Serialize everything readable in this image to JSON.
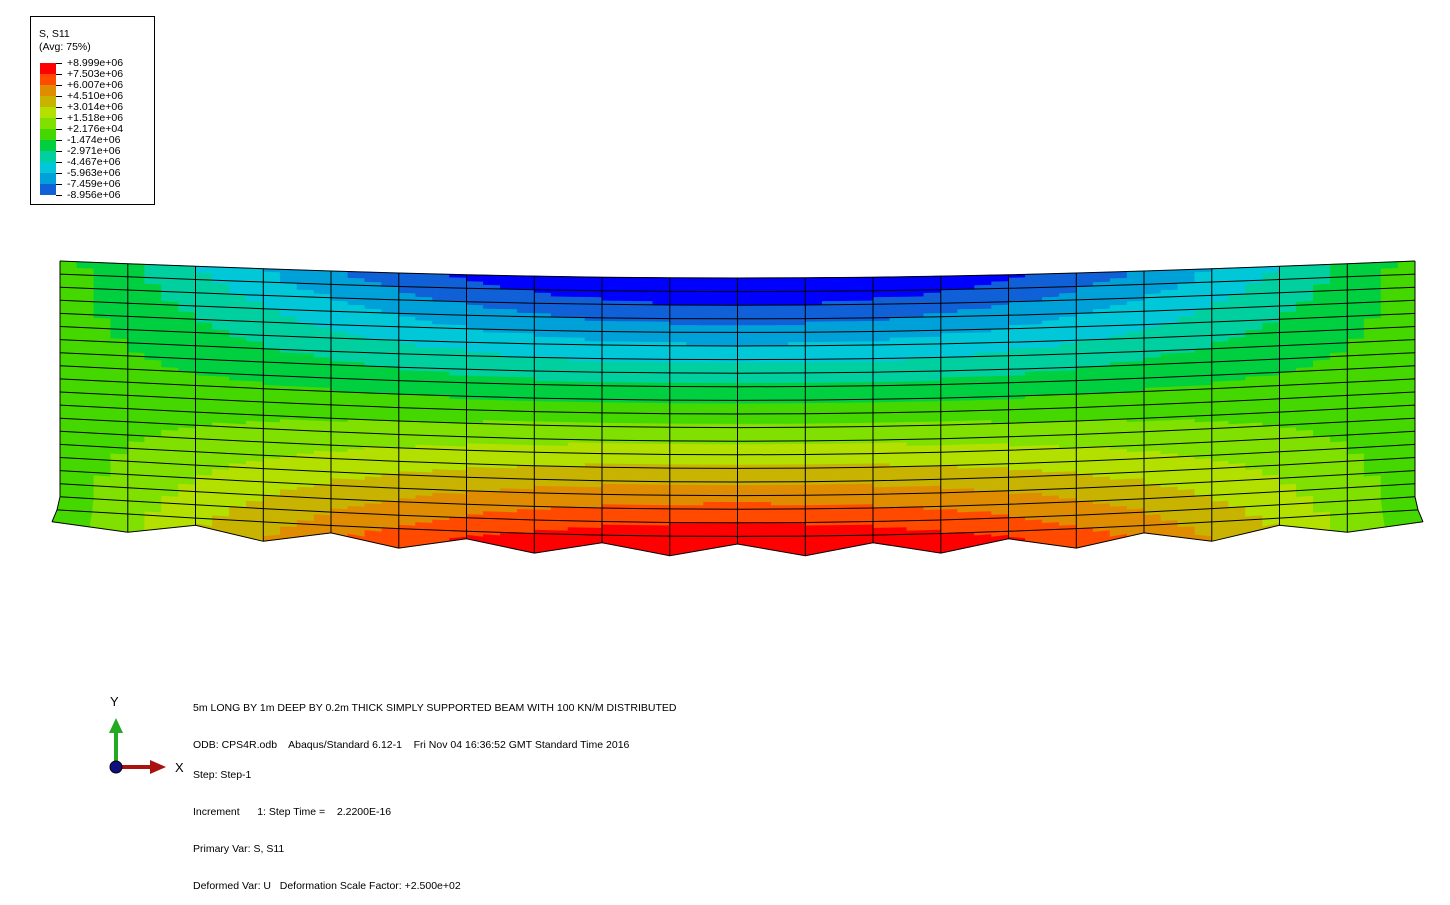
{
  "legend": {
    "title": "S, S11",
    "subtitle": "(Avg: 75%)",
    "levels": [
      "+8.999e+06",
      "+7.503e+06",
      "+6.007e+06",
      "+4.510e+06",
      "+3.014e+06",
      "+1.518e+06",
      "+2.176e+04",
      "-1.474e+06",
      "-2.971e+06",
      "-4.467e+06",
      "-5.963e+06",
      "-7.459e+06",
      "-8.956e+06"
    ],
    "colors": [
      "#ff0000",
      "#ff4a00",
      "#e08c00",
      "#c8b400",
      "#b4e000",
      "#80e000",
      "#44d800",
      "#00d040",
      "#00d0a0",
      "#00c8d8",
      "#00a0d8",
      "#1060d8",
      "#0000ff"
    ]
  },
  "contour": {
    "field": "S11",
    "min": -8956000.0,
    "max": 8999000.0
  },
  "info": {
    "title_line": "5m LONG BY 1m DEEP BY 0.2m THICK SIMPLY SUPPORTED BEAM WITH 100 KN/M DISTRIBUTED",
    "odb_line": "ODB: CPS4R.odb    Abaqus/Standard 6.12-1    Fri Nov 04 16:36:52 GMT Standard Time 2016",
    "step_line": "Step: Step-1",
    "increment_line": "Increment      1: Step Time =    2.2200E-16",
    "primary_line": "Primary Var: S, S11",
    "deformed_line": "Deformed Var: U   Deformation Scale Factor: +2.500e+02"
  },
  "triad": {
    "x_label": "X",
    "y_label": "Y",
    "x_color": "#aa1111",
    "y_color": "#22aa22",
    "origin_color": "#101080"
  },
  "mesh": {
    "columns": 20,
    "rows": 20
  }
}
